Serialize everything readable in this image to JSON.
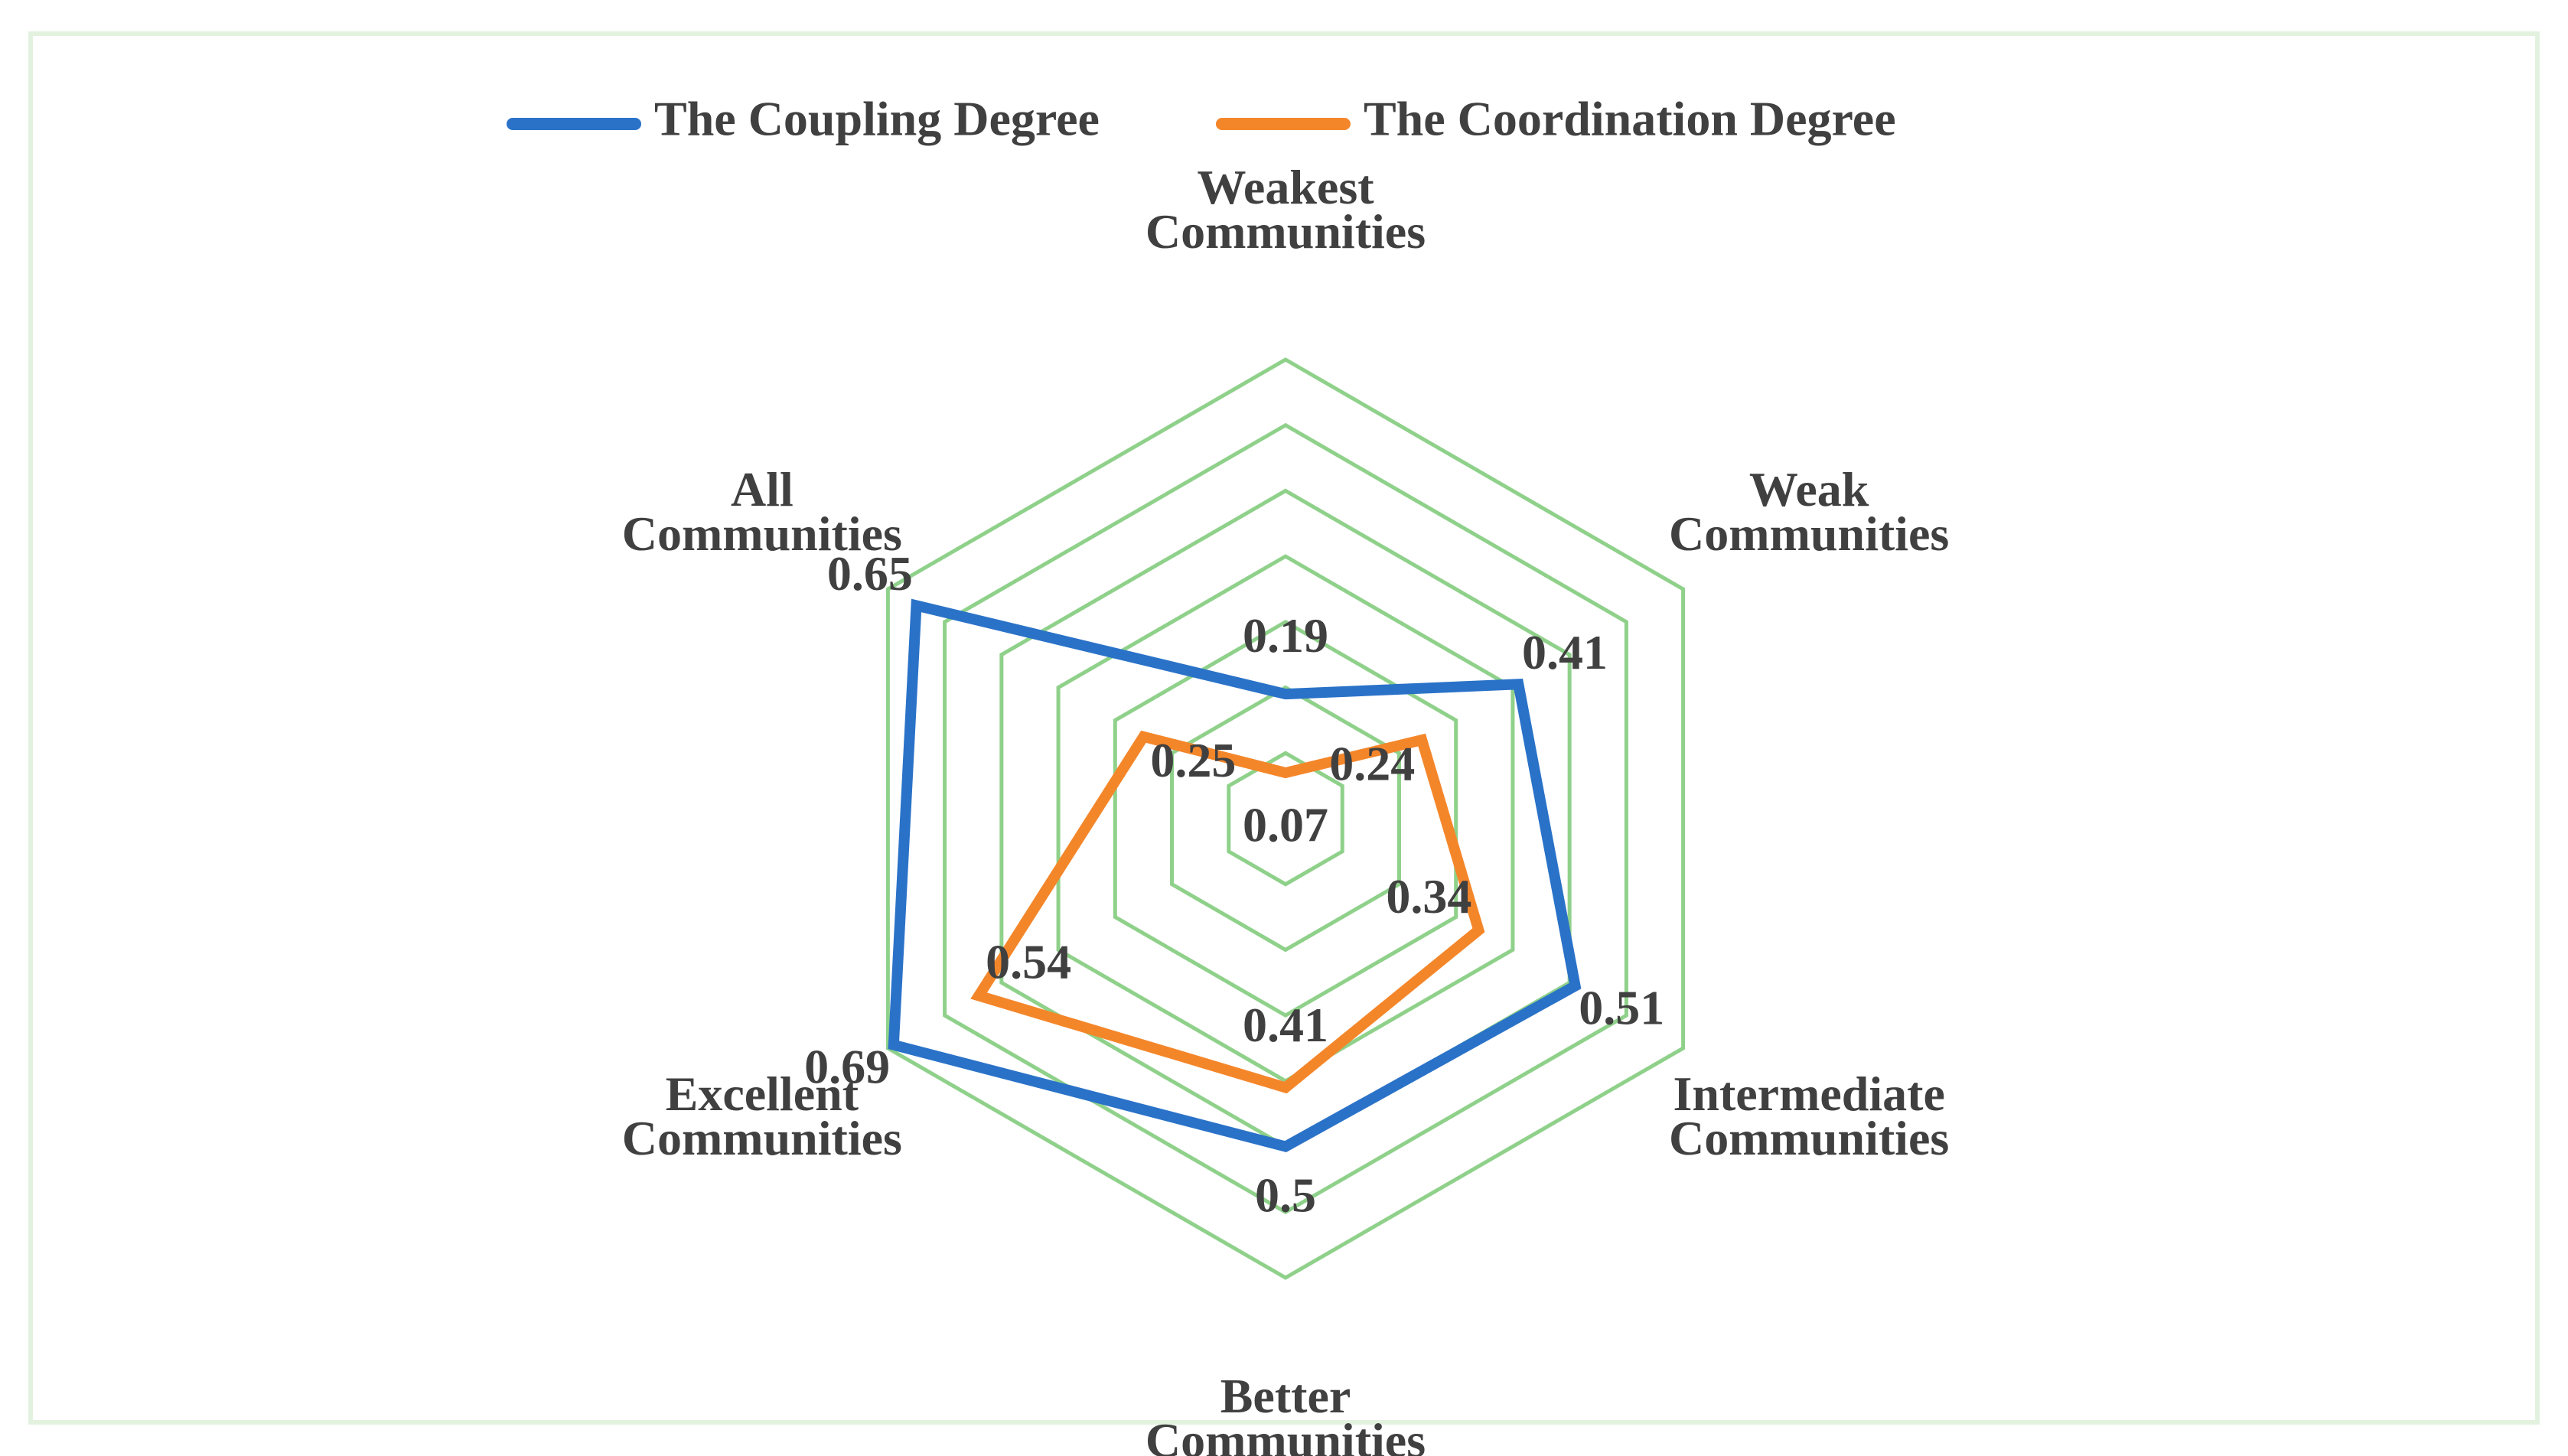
{
  "chart_data": {
    "type": "radar",
    "categories": [
      "Weakest Communities",
      "Weak Communities",
      "Intermediate Communities",
      "Better Communities",
      "Excellent Communities",
      "All Communities"
    ],
    "series": [
      {
        "name": "The Coupling Degree",
        "color": "#2a72c8",
        "values": [
          0.19,
          0.41,
          0.51,
          0.5,
          0.69,
          0.65
        ]
      },
      {
        "name": "The Coordination Degree",
        "color": "#f4862a",
        "values": [
          0.07,
          0.24,
          0.34,
          0.41,
          0.54,
          0.25
        ]
      }
    ],
    "ylim": [
      0,
      0.7
    ],
    "yticks": [
      0,
      0.1,
      0.2,
      0.3,
      0.4,
      0.5,
      0.6,
      0.7
    ],
    "grid": true,
    "grid_color": "#8fd18a",
    "legend": "top"
  }
}
